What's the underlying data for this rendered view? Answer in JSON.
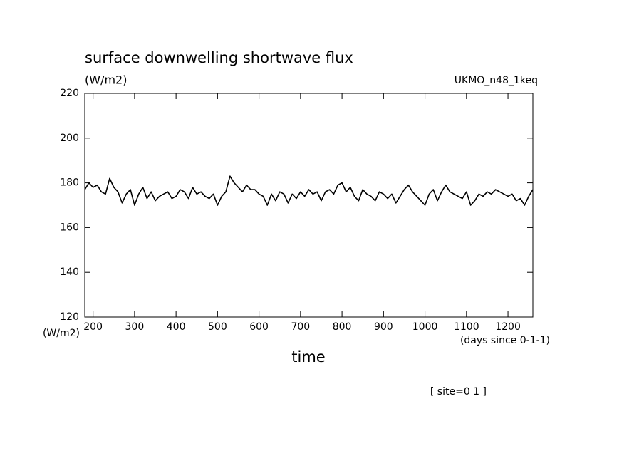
{
  "chart_data": {
    "type": "line",
    "title": "surface downwelling shortwave flux",
    "subtitle": "(W/m2)",
    "dataset": "UKMO_n48_1keq",
    "xlabel": "time",
    "x_units": "(days since 0-1-1)",
    "y_units": "(W/m2)",
    "annotation": "[ site=0 1 ]",
    "xlim": [
      180,
      1260
    ],
    "ylim": [
      120,
      220
    ],
    "xticks": [
      200,
      300,
      400,
      500,
      600,
      700,
      800,
      900,
      1000,
      1100,
      1200
    ],
    "yticks": [
      120,
      140,
      160,
      180,
      200,
      220
    ],
    "x": [
      180,
      190,
      200,
      210,
      220,
      230,
      240,
      250,
      260,
      270,
      280,
      290,
      300,
      310,
      320,
      330,
      340,
      350,
      360,
      370,
      380,
      390,
      400,
      410,
      420,
      430,
      440,
      450,
      460,
      470,
      480,
      490,
      500,
      510,
      520,
      530,
      540,
      550,
      560,
      570,
      580,
      590,
      600,
      610,
      620,
      630,
      640,
      650,
      660,
      670,
      680,
      690,
      700,
      710,
      720,
      730,
      740,
      750,
      760,
      770,
      780,
      790,
      800,
      810,
      820,
      830,
      840,
      850,
      860,
      870,
      880,
      890,
      900,
      910,
      920,
      930,
      940,
      950,
      960,
      970,
      980,
      990,
      1000,
      1010,
      1020,
      1030,
      1040,
      1050,
      1060,
      1070,
      1080,
      1090,
      1100,
      1110,
      1120,
      1130,
      1140,
      1150,
      1160,
      1170,
      1180,
      1190,
      1200,
      1210,
      1220,
      1230,
      1240,
      1250,
      1260
    ],
    "series": [
      {
        "color": "#000000",
        "values": [
          177,
          180,
          178,
          179,
          176,
          175,
          182,
          178,
          176,
          171,
          175,
          177,
          170,
          175,
          178,
          173,
          176,
          172,
          174,
          175,
          176,
          173,
          174,
          177,
          176,
          173,
          178,
          175,
          176,
          174,
          173,
          175,
          170,
          174,
          176,
          183,
          180,
          178,
          176,
          179,
          177,
          177,
          175,
          174,
          170,
          175,
          172,
          176,
          175,
          171,
          175,
          173,
          176,
          174,
          177,
          175,
          176,
          172,
          176,
          177,
          175,
          179,
          180,
          176,
          178,
          174,
          172,
          177,
          175,
          174,
          172,
          176,
          175,
          173,
          175,
          171,
          174,
          177,
          179,
          176,
          174,
          172,
          170,
          175,
          177,
          172,
          176,
          179,
          176,
          175,
          174,
          173,
          176,
          170,
          172,
          175,
          174,
          176,
          175,
          177,
          176,
          175,
          174,
          175,
          172,
          173,
          170,
          174,
          177
        ]
      }
    ]
  }
}
